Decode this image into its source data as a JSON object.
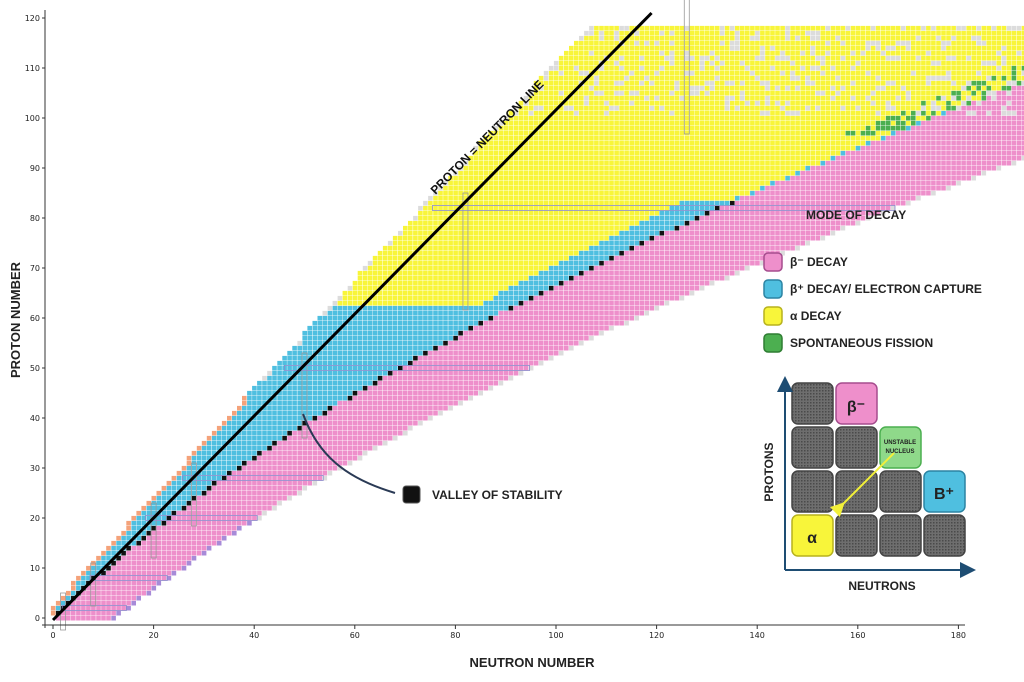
{
  "chart_data": {
    "type": "heatmap",
    "title": "",
    "xlabel": "NEUTRON NUMBER",
    "ylabel": "PROTON NUMBER",
    "xlim": [
      0,
      180
    ],
    "ylim": [
      0,
      120
    ],
    "x_ticks": [
      0,
      20,
      40,
      60,
      80,
      100,
      120,
      140,
      160,
      180
    ],
    "y_ticks": [
      0,
      10,
      20,
      30,
      40,
      50,
      60,
      70,
      80,
      90,
      100,
      110,
      120
    ],
    "diagonal_line": {
      "label": "PROTON = NEUTRON LINE",
      "from": [
        0,
        0
      ],
      "to": [
        119,
        119
      ]
    },
    "legend": {
      "title": "MODE OF DECAY",
      "items": [
        {
          "label": "β⁻ DECAY",
          "color": "#ee8fcb"
        },
        {
          "label": "β⁺ DECAY/ ELECTRON CAPTURE",
          "color": "#4fbfe0"
        },
        {
          "label": "α DECAY",
          "color": "#f8f53a"
        },
        {
          "label": "SPONTANEOUS FISSION",
          "color": "#4caf50"
        }
      ]
    },
    "stable_marker": {
      "label": "VALLEY OF STABILITY",
      "color": "#111111"
    },
    "magic_numbers": [
      2,
      8,
      20,
      28,
      50,
      82,
      126
    ],
    "colors": {
      "beta_minus": "#ee8fcb",
      "beta_plus": "#4fbfe0",
      "alpha": "#f8f53a",
      "fission": "#4caf50",
      "stable": "#111111",
      "proton_emission": "#f4a27a",
      "neutron_emission": "#a78bd8",
      "unknown": "#dcdcdc"
    },
    "inset": {
      "y_label": "PROTONS",
      "x_label": "NEUTRONS",
      "center_label": "UNSTABLE NUCLEUS",
      "beta_minus_label": "β⁻",
      "beta_plus_label": "B⁺",
      "alpha_label": "α"
    }
  }
}
